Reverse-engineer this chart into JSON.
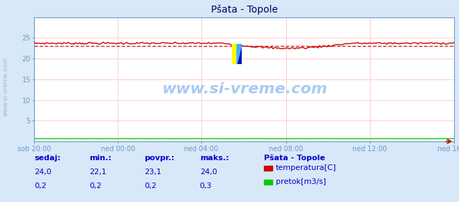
{
  "title": "Pšata - Topole",
  "fig_bg_color": "#d8e8f8",
  "plot_bg_color": "#ffffff",
  "x_labels": [
    "sob 20:00",
    "ned 00:00",
    "ned 04:00",
    "ned 08:00",
    "ned 12:00",
    "ned 16:00"
  ],
  "x_ticks_norm": [
    0.0,
    0.2,
    0.4,
    0.6,
    0.8,
    1.0
  ],
  "n_points": 288,
  "temp_min": 22.1,
  "temp_max": 24.0,
  "temp_avg": 23.1,
  "flow_val": 0.2,
  "y_min": 0,
  "y_max": 30,
  "y_ticks": [
    5,
    10,
    15,
    20,
    25
  ],
  "temp_color": "#cc0000",
  "flow_color": "#00cc00",
  "grid_color": "#ffcccc",
  "title_color": "#000066",
  "axis_color": "#6699cc",
  "label_color": "#0000cc",
  "watermark": "www.si-vreme.com",
  "legend_title": "Pšata - Topole",
  "legend_items": [
    "temperatura[C]",
    "pretok[m3/s]"
  ],
  "legend_colors": [
    "#cc0000",
    "#00cc00"
  ],
  "footer_labels": [
    "sedaj:",
    "min.:",
    "povpr.:",
    "maks.:"
  ],
  "footer_values_temp": [
    "24,0",
    "22,1",
    "23,1",
    "24,0"
  ],
  "footer_values_flow": [
    "0,2",
    "0,2",
    "0,2",
    "0,3"
  ]
}
